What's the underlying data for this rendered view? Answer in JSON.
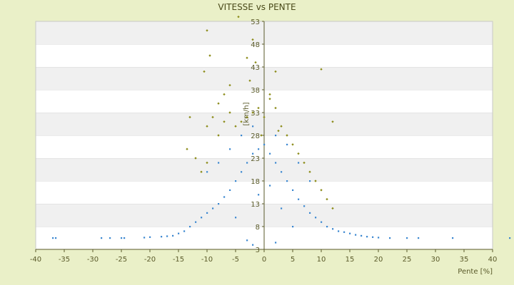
{
  "chart_data": {
    "type": "scatter",
    "title": "VITESSE vs PENTE",
    "xlabel": "Pente [%]",
    "ylabel": "[km/h]",
    "xlim": [
      -40,
      40
    ],
    "ylim": [
      3,
      53
    ],
    "x_ticks": [
      "-40",
      "-35",
      "-30",
      "-25",
      "-20",
      "-15",
      "-10",
      "-5",
      "0",
      "5",
      "10",
      "15",
      "20",
      "25",
      "30",
      "35",
      "40"
    ],
    "y_ticks": [
      "3",
      "8",
      "13",
      "18",
      "23",
      "28",
      "33",
      "38",
      "43",
      "48",
      "53"
    ],
    "grid": "horizontal bands",
    "legend": "none",
    "colors": {
      "background": "#eaf0c8",
      "band_light": "#ffffff",
      "band_dark": "#f0f0f0",
      "series_blue": "#3a87d0",
      "series_olive": "#8c8c1a",
      "axis": "#5a5a2a"
    },
    "series": [
      {
        "color": "#3a87d0",
        "values": [
          [
            -37,
            5.5
          ],
          [
            -36.5,
            5.5
          ],
          [
            -28.5,
            5.5
          ],
          [
            -27,
            5.5
          ],
          [
            -25,
            5.5
          ],
          [
            -24.5,
            5.5
          ],
          [
            -21,
            5.6
          ],
          [
            -20,
            5.7
          ],
          [
            -18,
            5.8
          ],
          [
            -17,
            5.9
          ],
          [
            -16,
            6
          ],
          [
            -15,
            6.5
          ],
          [
            -14,
            7
          ],
          [
            -13,
            8
          ],
          [
            -12,
            9
          ],
          [
            -11,
            10
          ],
          [
            -10,
            11
          ],
          [
            -9,
            12
          ],
          [
            -8,
            13
          ],
          [
            -7,
            14.5
          ],
          [
            -6,
            16
          ],
          [
            -5,
            18
          ],
          [
            -4,
            20
          ],
          [
            -3,
            22
          ],
          [
            -2,
            24
          ],
          [
            -1,
            25
          ],
          [
            0,
            26
          ],
          [
            1,
            24
          ],
          [
            2,
            22
          ],
          [
            3,
            20
          ],
          [
            4,
            18
          ],
          [
            5,
            16
          ],
          [
            6,
            14
          ],
          [
            7,
            12.5
          ],
          [
            8,
            11
          ],
          [
            9,
            10
          ],
          [
            10,
            9
          ],
          [
            11,
            8
          ],
          [
            12,
            7.5
          ],
          [
            13,
            7
          ],
          [
            14,
            6.8
          ],
          [
            15,
            6.5
          ],
          [
            16,
            6.2
          ],
          [
            17,
            6
          ],
          [
            18,
            5.8
          ],
          [
            19,
            5.7
          ],
          [
            20,
            5.6
          ],
          [
            22,
            5.5
          ],
          [
            25,
            5.5
          ],
          [
            27,
            5.5
          ],
          [
            33,
            5.5
          ],
          [
            43,
            5.5
          ],
          [
            -10,
            20
          ],
          [
            -8,
            22
          ],
          [
            -6,
            25
          ],
          [
            -4,
            28
          ],
          [
            -2,
            30
          ],
          [
            2,
            28
          ],
          [
            4,
            26
          ],
          [
            6,
            22
          ],
          [
            8,
            18
          ],
          [
            -3,
            5
          ],
          [
            -2,
            4
          ],
          [
            2,
            4.5
          ],
          [
            5,
            8
          ],
          [
            -5,
            10
          ],
          [
            3,
            12
          ],
          [
            -1,
            15
          ],
          [
            1,
            17
          ]
        ]
      },
      {
        "color": "#8c8c1a",
        "values": [
          [
            -10,
            51
          ],
          [
            -10.5,
            42
          ],
          [
            -9.5,
            45.5
          ],
          [
            -4.5,
            54
          ],
          [
            -2.5,
            40
          ],
          [
            -3,
            45
          ],
          [
            -2,
            49
          ],
          [
            -1.5,
            44
          ],
          [
            -6,
            39
          ],
          [
            -7,
            37
          ],
          [
            -8,
            35
          ],
          [
            -9,
            32
          ],
          [
            -10,
            30
          ],
          [
            -13,
            32
          ],
          [
            -13.5,
            25
          ],
          [
            -12,
            23
          ],
          [
            -11,
            20
          ],
          [
            -10,
            22
          ],
          [
            -8,
            28
          ],
          [
            -7,
            31
          ],
          [
            -6,
            33
          ],
          [
            -5,
            30
          ],
          [
            -4,
            31
          ],
          [
            -3,
            32
          ],
          [
            -2,
            33
          ],
          [
            -1,
            34
          ],
          [
            0,
            32
          ],
          [
            1,
            36
          ],
          [
            2,
            34
          ],
          [
            3,
            30
          ],
          [
            4,
            28
          ],
          [
            5,
            26
          ],
          [
            6,
            24
          ],
          [
            7,
            22
          ],
          [
            8,
            20
          ],
          [
            9,
            18
          ],
          [
            10,
            16
          ],
          [
            11,
            14
          ],
          [
            12,
            12
          ],
          [
            2,
            42
          ],
          [
            10,
            42.5
          ],
          [
            12,
            31
          ],
          [
            1,
            37
          ],
          [
            2.5,
            29
          ],
          [
            -0.5,
            28
          ]
        ]
      }
    ]
  }
}
